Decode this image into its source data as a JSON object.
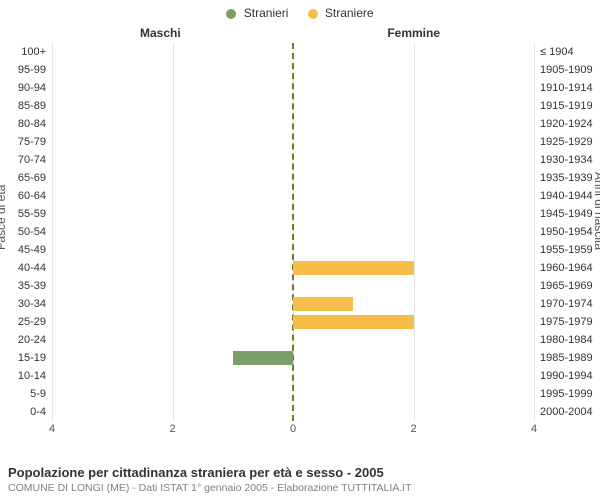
{
  "legend": {
    "items": [
      {
        "label": "Stranieri",
        "color": "#7b9e6b"
      },
      {
        "label": "Straniere",
        "color": "#f6bd4a"
      }
    ]
  },
  "headers": {
    "left": "Maschi",
    "right": "Femmine"
  },
  "y_titles": {
    "left": "Fasce di età",
    "right": "Anni di nascita"
  },
  "chart": {
    "type": "population-pyramid",
    "x_max": 4,
    "x_ticks": [
      4,
      2,
      0,
      2,
      4
    ],
    "grid_color": "#e6e6e6",
    "zero_line_color": "#777722",
    "bar_colors": {
      "male": "#7b9e6b",
      "female": "#f6bd4a"
    },
    "background": "#ffffff",
    "rows": [
      {
        "age": "100+",
        "birth": "≤ 1904",
        "male": 0,
        "female": 0
      },
      {
        "age": "95-99",
        "birth": "1905-1909",
        "male": 0,
        "female": 0
      },
      {
        "age": "90-94",
        "birth": "1910-1914",
        "male": 0,
        "female": 0
      },
      {
        "age": "85-89",
        "birth": "1915-1919",
        "male": 0,
        "female": 0
      },
      {
        "age": "80-84",
        "birth": "1920-1924",
        "male": 0,
        "female": 0
      },
      {
        "age": "75-79",
        "birth": "1925-1929",
        "male": 0,
        "female": 0
      },
      {
        "age": "70-74",
        "birth": "1930-1934",
        "male": 0,
        "female": 0
      },
      {
        "age": "65-69",
        "birth": "1935-1939",
        "male": 0,
        "female": 0
      },
      {
        "age": "60-64",
        "birth": "1940-1944",
        "male": 0,
        "female": 0
      },
      {
        "age": "55-59",
        "birth": "1945-1949",
        "male": 0,
        "female": 0
      },
      {
        "age": "50-54",
        "birth": "1950-1954",
        "male": 0,
        "female": 0
      },
      {
        "age": "45-49",
        "birth": "1955-1959",
        "male": 0,
        "female": 0
      },
      {
        "age": "40-44",
        "birth": "1960-1964",
        "male": 0,
        "female": 2
      },
      {
        "age": "35-39",
        "birth": "1965-1969",
        "male": 0,
        "female": 0
      },
      {
        "age": "30-34",
        "birth": "1970-1974",
        "male": 0,
        "female": 1
      },
      {
        "age": "25-29",
        "birth": "1975-1979",
        "male": 0,
        "female": 2
      },
      {
        "age": "20-24",
        "birth": "1980-1984",
        "male": 0,
        "female": 0
      },
      {
        "age": "15-19",
        "birth": "1985-1989",
        "male": 1,
        "female": 0
      },
      {
        "age": "10-14",
        "birth": "1990-1994",
        "male": 0,
        "female": 0
      },
      {
        "age": "5-9",
        "birth": "1995-1999",
        "male": 0,
        "female": 0
      },
      {
        "age": "0-4",
        "birth": "2000-2004",
        "male": 0,
        "female": 0
      }
    ]
  },
  "footer": {
    "title": "Popolazione per cittadinanza straniera per età e sesso - 2005",
    "subtitle": "COMUNE DI LONGI (ME) - Dati ISTAT 1° gennaio 2005 - Elaborazione TUTTITALIA.IT"
  }
}
